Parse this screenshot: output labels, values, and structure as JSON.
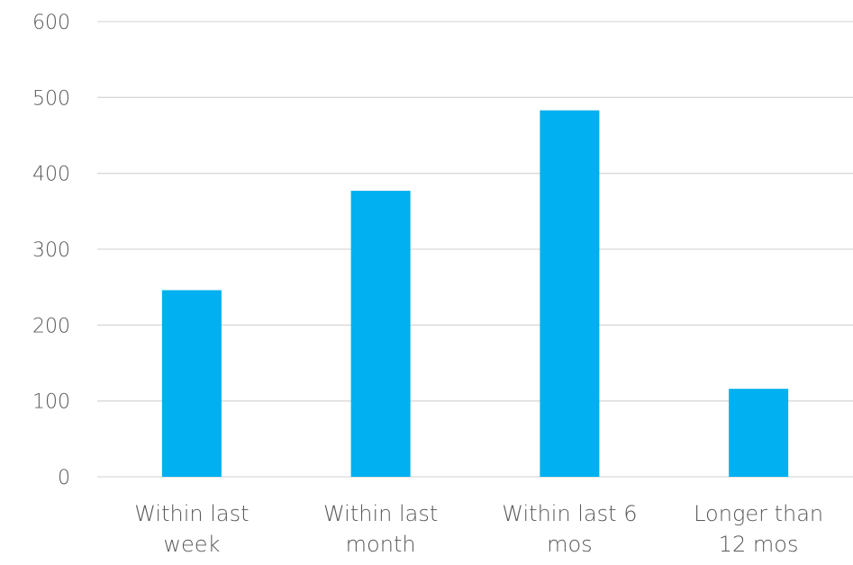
{
  "chart_data": {
    "type": "bar",
    "categories": [
      [
        "Within last",
        "week"
      ],
      [
        "Within last",
        "month"
      ],
      [
        "Within last 6",
        "mos"
      ],
      [
        "Longer than",
        "12 mos"
      ]
    ],
    "values": [
      246,
      377,
      483,
      116
    ],
    "ylim": [
      0,
      600
    ],
    "yticks": [
      0,
      100,
      200,
      300,
      400,
      500,
      600
    ],
    "grid": true,
    "legend": "none",
    "bar_color": "#00b0f0",
    "title": "",
    "xlabel": "",
    "ylabel": ""
  }
}
